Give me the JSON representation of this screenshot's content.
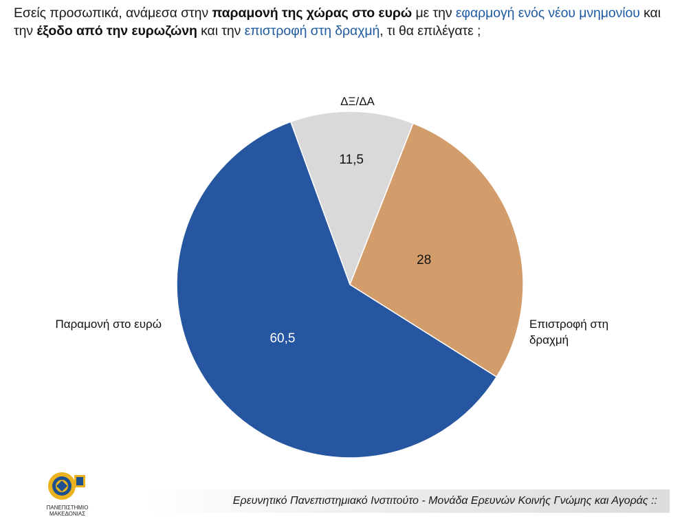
{
  "header": {
    "question_parts": [
      {
        "text": "Εσείς προσωπικά, ανάμεσα στην ",
        "style": "normal"
      },
      {
        "text": "παραμονή της χώρας στο ευρώ",
        "style": "bold"
      },
      {
        "text": " με την ",
        "style": "normal"
      },
      {
        "text": "εφαρμογή ενός νέου μνημονίου",
        "style": "highlight"
      },
      {
        "text": " και την ",
        "style": "normal"
      },
      {
        "text": "έξοδο από την ευρωζώνη",
        "style": "bold"
      },
      {
        "text": " και την ",
        "style": "normal"
      },
      {
        "text": "επιστροφή στη δραχμή",
        "style": "highlight"
      },
      {
        "text": ", τι θα επιλέγατε ;",
        "style": "normal"
      }
    ]
  },
  "chart_data": {
    "type": "pie",
    "slices": [
      {
        "label": "ΔΞ/ΔΑ",
        "value": 11.5,
        "display": "11,5",
        "color": "#d9d9d9",
        "value_color": "#111111"
      },
      {
        "label": "Επιστροφή στη δραχμή",
        "value": 28,
        "display": "28",
        "color": "#d39c6b",
        "value_color": "#111111"
      },
      {
        "label": "Παραμονή στο ευρώ",
        "value": 60.5,
        "display": "60,5",
        "color": "#2756a0",
        "value_color": "#ffffff"
      }
    ],
    "start_angle_deg": -20,
    "direction": "clockwise",
    "legend": "none",
    "title": ""
  },
  "footer": {
    "text": "Ερευνητικό Πανεπιστημιακό Ινστιτούτο - Μονάδα Ερευνών Κοινής Γνώμης και Αγοράς ::"
  },
  "logo": {
    "caption_line1": "ΠΑΝΕΠΙΣΤΗΜΙΟ",
    "caption_line2": "ΜΑΚΕΔΟΝΙΑΣ"
  }
}
